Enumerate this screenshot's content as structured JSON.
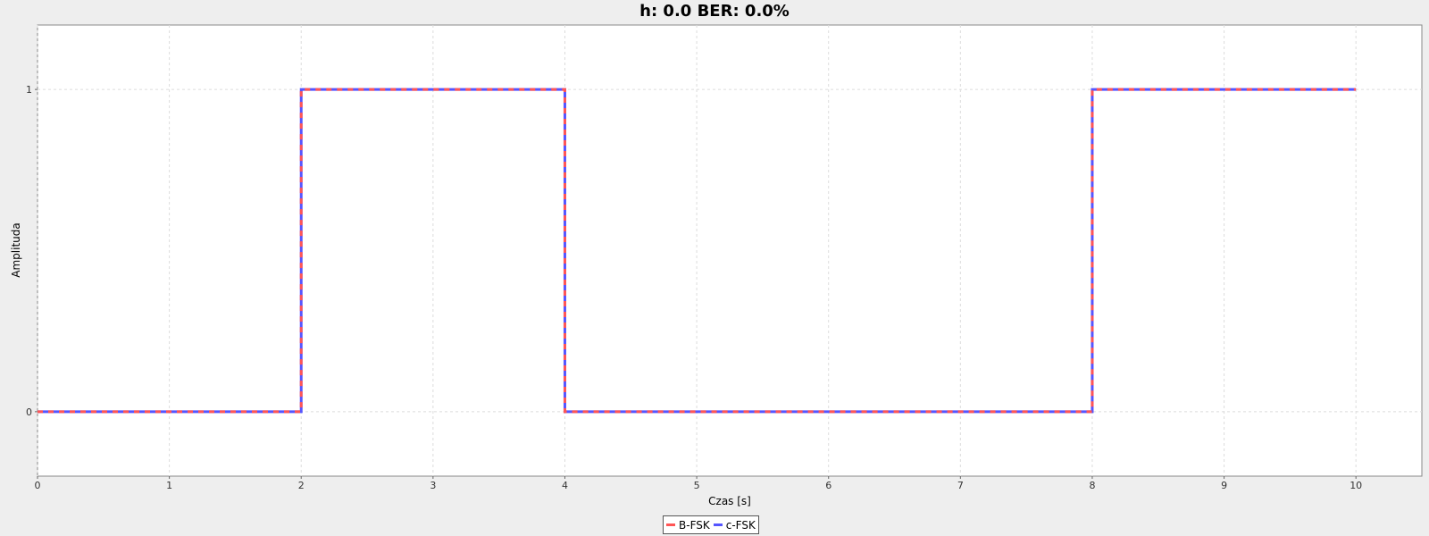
{
  "title": "h: 0.0 BER: 0.0%",
  "chart_data": {
    "type": "line",
    "xlabel": "Czas [s]",
    "ylabel": "Amplituda",
    "xlim": [
      0,
      10.5
    ],
    "ylim": [
      -0.2,
      1.2
    ],
    "x_ticks": [
      "0",
      "1",
      "2",
      "3",
      "4",
      "5",
      "6",
      "7",
      "8",
      "9",
      "10"
    ],
    "y_ticks": [
      "0",
      "1"
    ],
    "grid": true,
    "legend_position": "bottom",
    "series": [
      {
        "name": "B-FSK",
        "color": "#ff5555",
        "style": "dashed",
        "x": [
          0,
          2,
          2,
          4,
          4,
          8,
          8,
          10
        ],
        "y": [
          0,
          0,
          1,
          1,
          0,
          0,
          1,
          1
        ]
      },
      {
        "name": "c-FSK",
        "color": "#5555ff",
        "style": "solid",
        "x": [
          0,
          2,
          2,
          4,
          4,
          8,
          8,
          10
        ],
        "y": [
          0,
          0,
          1,
          1,
          0,
          0,
          1,
          1
        ]
      }
    ]
  }
}
